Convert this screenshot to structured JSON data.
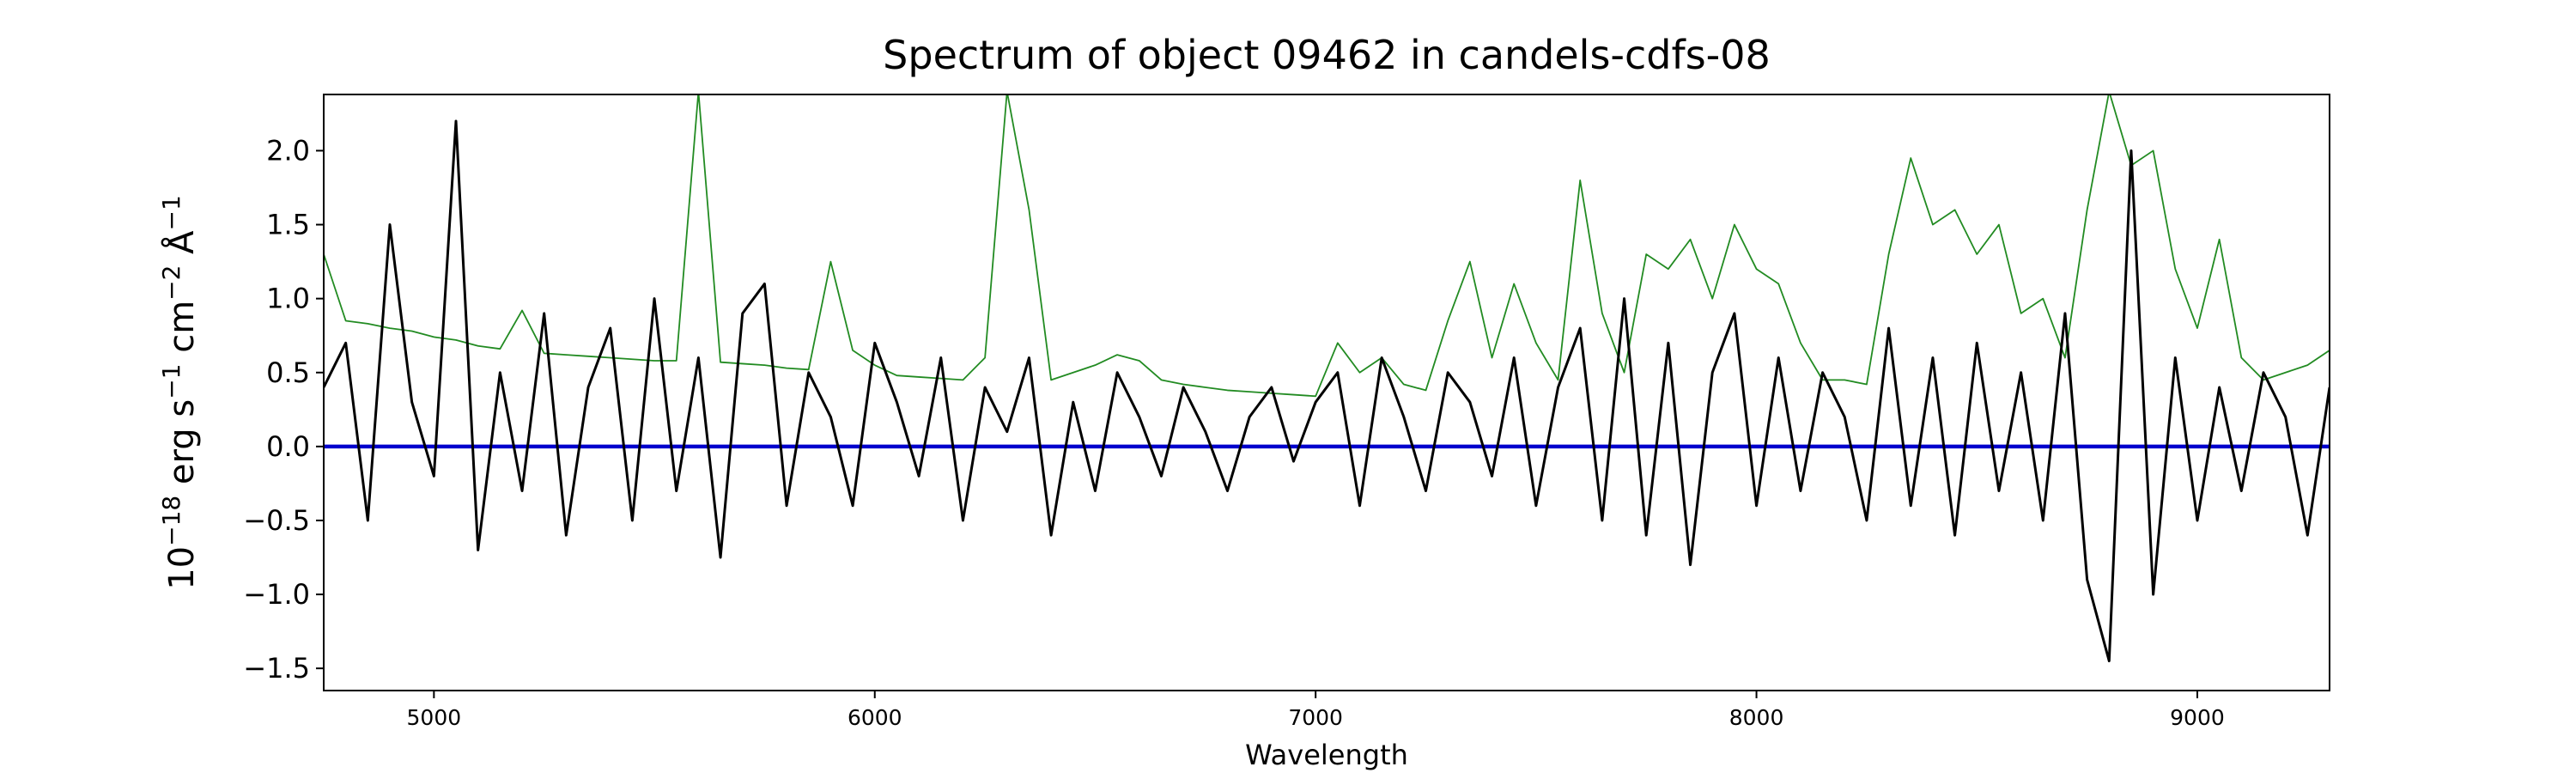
{
  "chart_data": {
    "type": "line",
    "title": "Spectrum of object 09462 in candels-cdfs-08",
    "xlabel": "Wavelength",
    "ylabel": {
      "base": [
        "10",
        " erg s",
        " cm",
        " Å"
      ],
      "sup": [
        "−18",
        "−1",
        "−2",
        "−1"
      ]
    },
    "xlim": [
      4750,
      9300
    ],
    "ylim": [
      -1.65,
      2.38
    ],
    "xticks": [
      5000,
      6000,
      7000,
      8000,
      9000
    ],
    "yticks": [
      {
        "value": -1.5,
        "label": "−1.5"
      },
      {
        "value": -1.0,
        "label": "−1.0"
      },
      {
        "value": -0.5,
        "label": "−0.5"
      },
      {
        "value": 0.0,
        "label": "0.0"
      },
      0.5,
      {
        "value": 1.0,
        "label": "1.0"
      },
      1.5,
      {
        "value": 2.0,
        "label": "2.0"
      }
    ],
    "grid": false,
    "series": [
      {
        "color": "#228b22",
        "x": [
          4750,
          4800,
          4850,
          4900,
          4950,
          5000,
          5050,
          5100,
          5150,
          5200,
          5250,
          5300,
          5350,
          5400,
          5450,
          5500,
          5550,
          5600,
          5650,
          5700,
          5750,
          5800,
          5850,
          5900,
          5950,
          6000,
          6050,
          6100,
          6150,
          6200,
          6250,
          6300,
          6350,
          6400,
          6450,
          6500,
          6550,
          6600,
          6650,
          6700,
          6750,
          6800,
          6850,
          6900,
          6950,
          7000,
          7050,
          7100,
          7150,
          7200,
          7250,
          7300,
          7350,
          7400,
          7450,
          7500,
          7550,
          7600,
          7650,
          7700,
          7750,
          7800,
          7850,
          7900,
          7950,
          8000,
          8050,
          8100,
          8150,
          8200,
          8250,
          8300,
          8350,
          8400,
          8450,
          8500,
          8550,
          8600,
          8650,
          8700,
          8750,
          8800,
          8850,
          8900,
          8950,
          9000,
          9050,
          9100,
          9150,
          9200,
          9250,
          9300
        ],
        "values": [
          1.3,
          0.85,
          0.83,
          0.8,
          0.78,
          0.74,
          0.72,
          0.68,
          0.66,
          0.92,
          0.63,
          0.62,
          0.61,
          0.6,
          0.59,
          0.58,
          0.58,
          2.4,
          0.57,
          0.56,
          0.55,
          0.53,
          0.52,
          1.25,
          0.65,
          0.55,
          0.48,
          0.47,
          0.46,
          0.45,
          0.6,
          2.4,
          1.6,
          0.45,
          0.5,
          0.55,
          0.62,
          0.58,
          0.45,
          0.42,
          0.4,
          0.38,
          0.37,
          0.36,
          0.35,
          0.34,
          0.7,
          0.5,
          0.6,
          0.42,
          0.38,
          0.85,
          1.25,
          0.6,
          1.1,
          0.7,
          0.45,
          1.8,
          0.9,
          0.5,
          1.3,
          1.2,
          1.4,
          1.0,
          1.5,
          1.2,
          1.1,
          0.7,
          0.45,
          0.45,
          0.42,
          1.3,
          1.95,
          1.5,
          1.6,
          1.3,
          1.5,
          0.9,
          1.0,
          0.6,
          1.6,
          2.4,
          1.9,
          2.0,
          1.2,
          0.8,
          1.4,
          0.6,
          0.45,
          0.5,
          0.55,
          0.65
        ]
      },
      {
        "color": "#0000cd",
        "x": [
          4750,
          9300
        ],
        "values": [
          0,
          0
        ]
      },
      {
        "color": "#000000",
        "x": [
          4750,
          4800,
          4850,
          4900,
          4950,
          5000,
          5050,
          5100,
          5150,
          5200,
          5250,
          5300,
          5350,
          5400,
          5450,
          5500,
          5550,
          5600,
          5650,
          5700,
          5750,
          5800,
          5850,
          5900,
          5950,
          6000,
          6050,
          6100,
          6150,
          6200,
          6250,
          6300,
          6350,
          6400,
          6450,
          6500,
          6550,
          6600,
          6650,
          6700,
          6750,
          6800,
          6850,
          6900,
          6950,
          7000,
          7050,
          7100,
          7150,
          7200,
          7250,
          7300,
          7350,
          7400,
          7450,
          7500,
          7550,
          7600,
          7650,
          7700,
          7750,
          7800,
          7850,
          7900,
          7950,
          8000,
          8050,
          8100,
          8150,
          8200,
          8250,
          8300,
          8350,
          8400,
          8450,
          8500,
          8550,
          8600,
          8650,
          8700,
          8750,
          8800,
          8850,
          8900,
          8950,
          9000,
          9050,
          9100,
          9150,
          9200,
          9250,
          9300
        ],
        "values": [
          0.4,
          0.7,
          -0.5,
          1.5,
          0.3,
          -0.2,
          2.2,
          -0.7,
          0.5,
          -0.3,
          0.9,
          -0.6,
          0.4,
          0.8,
          -0.5,
          1.0,
          -0.3,
          0.6,
          -0.75,
          0.9,
          1.1,
          -0.4,
          0.5,
          0.2,
          -0.4,
          0.7,
          0.3,
          -0.2,
          0.6,
          -0.5,
          0.4,
          0.1,
          0.6,
          -0.6,
          0.3,
          -0.3,
          0.5,
          0.2,
          -0.2,
          0.4,
          0.1,
          -0.3,
          0.2,
          0.4,
          -0.1,
          0.3,
          0.5,
          -0.4,
          0.6,
          0.2,
          -0.3,
          0.5,
          0.3,
          -0.2,
          0.6,
          -0.4,
          0.4,
          0.8,
          -0.5,
          1.0,
          -0.6,
          0.7,
          -0.8,
          0.5,
          0.9,
          -0.4,
          0.6,
          -0.3,
          0.5,
          0.2,
          -0.5,
          0.8,
          -0.4,
          0.6,
          -0.6,
          0.7,
          -0.3,
          0.5,
          -0.5,
          0.9,
          -0.9,
          -1.45,
          2.0,
          -1.0,
          0.6,
          -0.5,
          0.4,
          -0.3,
          0.5,
          0.2,
          -0.6,
          0.4
        ]
      }
    ]
  }
}
